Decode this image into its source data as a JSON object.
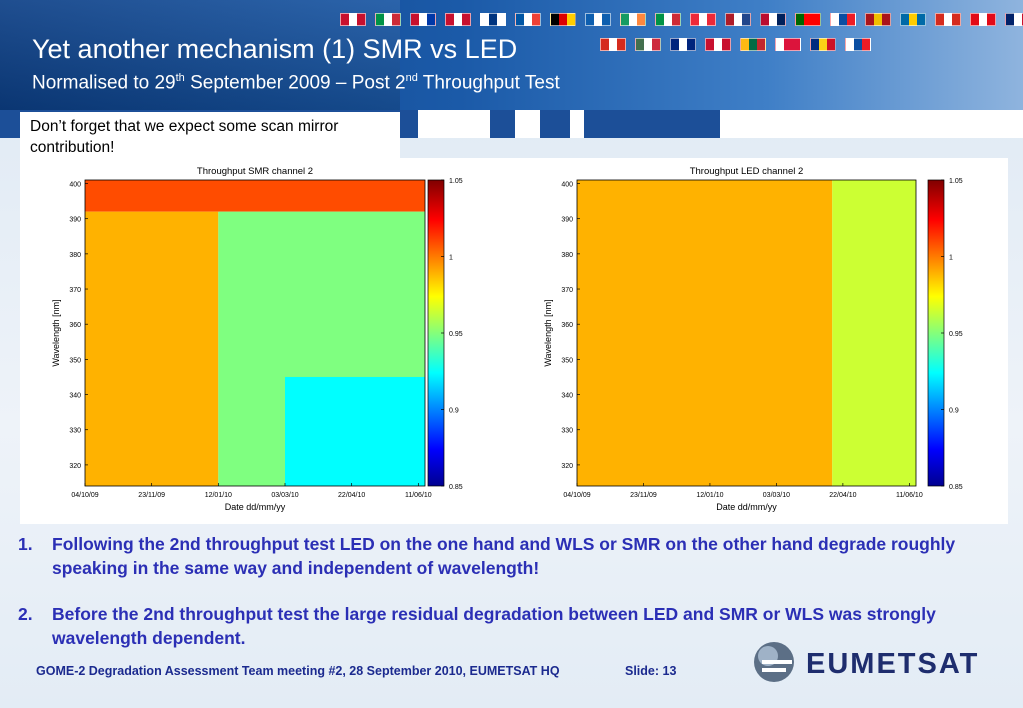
{
  "slide": {
    "title": "Yet another mechanism (1) SMR vs LED",
    "subtitle_a": "Normalised to 29",
    "subtitle_sup1": "th",
    "subtitle_b": " September 2009 – Post 2",
    "subtitle_sup2": "nd",
    "subtitle_c": " Throughput Test",
    "note": "Don’t forget that we expect some scan mirror contribution!",
    "bullets": [
      {
        "num": "1.",
        "text": "Following the 2nd throughput test LED on the one hand and WLS or SMR on the other hand degrade roughly speaking in the same way and independent of wavelength!"
      },
      {
        "num": "2.",
        "text": "Before the 2nd throughput test the large residual degradation between LED and SMR or WLS was strongly wavelength dependent."
      }
    ],
    "footer": "GOME-2 Degradation Assessment Team meeting #2, 28 September 2010, EUMETSAT HQ",
    "slide_label": "Slide: 13",
    "logo_text": "EUMETSAT"
  },
  "colors": {
    "header_blue": "#0c3f86",
    "bullet_text": "#2b2fb5",
    "orange": "#ff8c00",
    "yellow": "#ffe800",
    "green": "#88e070",
    "cyan": "#22f5f5"
  },
  "flag_colors": [
    [
      "#c8102e",
      "#ffffff",
      "#c8102e"
    ],
    [
      "#009246",
      "#ffffff",
      "#ce2b37"
    ],
    [
      "#c8102e",
      "#ffffff",
      "#0038a8"
    ],
    [
      "#c8102e",
      "#ffffff",
      "#c8102e"
    ],
    [
      "#ffffff",
      "#003580",
      "#ffffff"
    ],
    [
      "#0055a4",
      "#ffffff",
      "#ef4135"
    ],
    [
      "#000000",
      "#dd0000",
      "#ffce00"
    ],
    [
      "#0d5eaf",
      "#ffffff",
      "#0d5eaf"
    ],
    [
      "#169b62",
      "#ffffff",
      "#ff883e"
    ],
    [
      "#009246",
      "#ffffff",
      "#ce2b37"
    ],
    [
      "#ed2939",
      "#ffffff",
      "#ed2939"
    ],
    [
      "#ae1c28",
      "#ffffff",
      "#21468b"
    ],
    [
      "#ba0c2f",
      "#ffffff",
      "#00205b"
    ],
    [
      "#006600",
      "#ff0000",
      "#ff0000"
    ],
    [
      "#ffffff",
      "#0b4ea2",
      "#ee1c25"
    ],
    [
      "#aa151b",
      "#f1bf00",
      "#aa151b"
    ],
    [
      "#006aa7",
      "#fecc00",
      "#006aa7"
    ],
    [
      "#d52b1e",
      "#ffffff",
      "#d52b1e"
    ],
    [
      "#e30a17",
      "#ffffff",
      "#e30a17"
    ],
    [
      "#012169",
      "#ffffff",
      "#c8102e"
    ]
  ],
  "flag_colors_row2": [
    [
      "#d52b1e",
      "#ffffff",
      "#d52b1e"
    ],
    [
      "#436f4d",
      "#ffffff",
      "#cd2a3e"
    ],
    [
      "#00247d",
      "#ffffff",
      "#00247d"
    ],
    [
      "#c8102e",
      "#ffffff",
      "#c8102e"
    ],
    [
      "#fdb913",
      "#006a44",
      "#c1272d"
    ],
    [
      "#ffffff",
      "#dc143c",
      "#dc143c"
    ],
    [
      "#002b7f",
      "#fcd116",
      "#ce1126"
    ],
    [
      "#ffffff",
      "#0b4ea2",
      "#ee1c25"
    ]
  ],
  "chart_data": [
    {
      "type": "heatmap",
      "title": "Throughput SMR channel 2",
      "xlabel": "Date dd/mm/yy",
      "ylabel": "Wavelength [nm]",
      "x_ticks": [
        "04/10/09",
        "23/11/09",
        "12/01/10",
        "03/03/10",
        "22/04/10",
        "11/06/10"
      ],
      "y_ticks": [
        320,
        330,
        340,
        350,
        360,
        370,
        380,
        390,
        400
      ],
      "ylim": [
        314,
        401
      ],
      "colorbar": {
        "ticks": [
          0.85,
          0.9,
          0.95,
          1,
          1.05
        ],
        "range": [
          0.85,
          1.05
        ]
      },
      "regions": [
        {
          "wavelength_range": [
            392,
            401
          ],
          "date_range": [
            "04/10/09",
            "11/06/10"
          ],
          "value": 1.01
        },
        {
          "wavelength_range": [
            314,
            392
          ],
          "date_range": [
            "04/10/09",
            "12/01/10"
          ],
          "value": 0.99
        },
        {
          "wavelength_range": [
            314,
            392
          ],
          "date_range": [
            "12/01/10",
            "11/06/10"
          ],
          "value": 0.95
        },
        {
          "wavelength_range": [
            314,
            345
          ],
          "date_range": [
            "03/03/10",
            "11/06/10"
          ],
          "value": 0.925
        }
      ]
    },
    {
      "type": "heatmap",
      "title": "Throughput LED channel 2",
      "xlabel": "Date dd/mm/yy",
      "ylabel": "Wavelength [nm]",
      "x_ticks": [
        "04/10/09",
        "23/11/09",
        "12/01/10",
        "03/03/10",
        "22/04/10",
        "11/06/10"
      ],
      "y_ticks": [
        320,
        330,
        340,
        350,
        360,
        370,
        380,
        390,
        400
      ],
      "ylim": [
        314,
        401
      ],
      "colorbar": {
        "ticks": [
          0.85,
          0.9,
          0.95,
          1,
          1.05
        ],
        "range": [
          0.85,
          1.05
        ]
      },
      "regions": [
        {
          "wavelength_range": [
            314,
            401
          ],
          "date_range": [
            "04/10/09",
            "14/04/10"
          ],
          "value": 0.99
        },
        {
          "wavelength_range": [
            314,
            401
          ],
          "date_range": [
            "14/04/10",
            "11/06/10"
          ],
          "value": 0.965
        }
      ]
    }
  ]
}
